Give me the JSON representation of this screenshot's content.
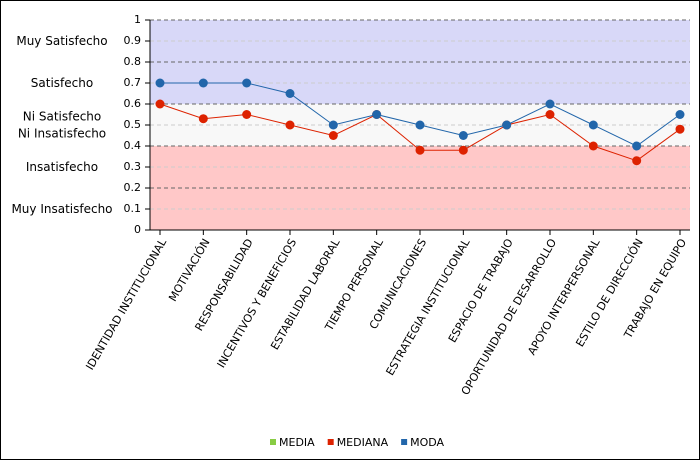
{
  "chart_data": {
    "type": "line",
    "categories": [
      "IDENTIDAD INSTITUCIONAL",
      "MOTIVACIÓN",
      "RESPONSABILIDAD",
      "INCENTIVOS Y BENEFICIOS",
      "ESTABILIDAD LABORAL",
      "TIEMPO PERSONAL",
      "COMUNICACIONES",
      "ESTRATEGIA INSTITUCIONAL",
      "ESPACIO DE TRABAJO",
      "OPORTUNIDAD DE DESARROLLO",
      "APOYO INTERPERSONAL",
      "ESTILO DE DIRECCIÓN",
      "TRABAJO EN EQUIPO"
    ],
    "series": [
      {
        "name": "MEDIA",
        "color": "#88cc44",
        "values": [
          null,
          null,
          null,
          null,
          null,
          null,
          null,
          null,
          null,
          null,
          null,
          null,
          null
        ]
      },
      {
        "name": "MEDIANA",
        "color": "#dd2200",
        "values": [
          0.6,
          0.53,
          0.55,
          0.5,
          0.45,
          0.55,
          0.38,
          0.38,
          0.5,
          0.55,
          0.4,
          0.33,
          0.48
        ]
      },
      {
        "name": "MODA",
        "color": "#2266aa",
        "values": [
          0.7,
          0.7,
          0.7,
          0.65,
          0.5,
          0.55,
          0.5,
          0.45,
          0.5,
          0.6,
          0.5,
          0.4,
          0.55
        ]
      }
    ],
    "bands": [
      {
        "label": "Muy Satisfecho",
        "range": [
          0.8,
          1
        ],
        "color": "#d8d8f8"
      },
      {
        "label": "Satisfecho",
        "range": [
          0.6,
          0.8
        ],
        "color": "#d8d8f8"
      },
      {
        "label": "Ni Satisfecho\nNi Insatisfecho",
        "range": [
          0.4,
          0.6
        ],
        "color": "#f8f8f8"
      },
      {
        "label": "Insatisfecho",
        "range": [
          0.2,
          0.4
        ],
        "color": "#ffc8c8"
      },
      {
        "label": "Muy Insatisfecho",
        "range": [
          0,
          0.2
        ],
        "color": "#ffc8c8"
      }
    ],
    "ylim": [
      0,
      1
    ],
    "yticks": [
      0,
      0.1,
      0.2,
      0.3,
      0.4,
      0.5,
      0.6,
      0.7,
      0.8,
      0.9,
      1
    ],
    "grid": true,
    "legend": "bottom"
  }
}
